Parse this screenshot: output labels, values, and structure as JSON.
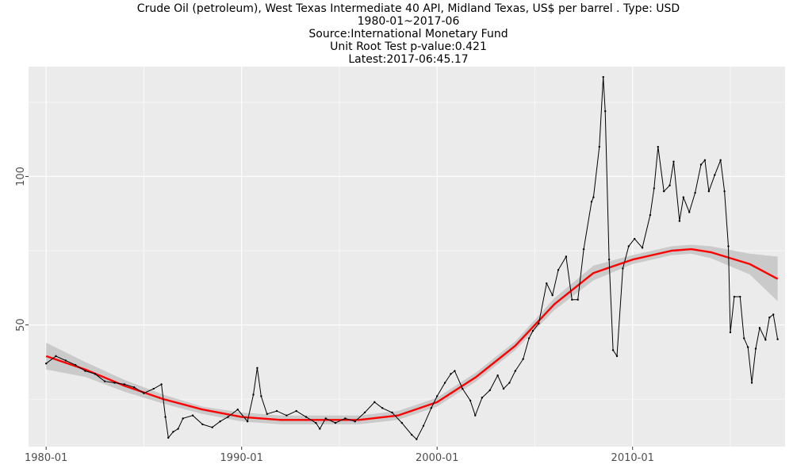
{
  "title_lines": [
    "Crude Oil (petroleum), West Texas Intermediate 40 API, Midland Texas, US$ per barrel . Type: USD",
    "1980-01~2017-06",
    "Source:International Monetary Fund",
    "Unit Root Test p-value:0.421",
    "Latest:2017-06:45.17"
  ],
  "chart_data": {
    "type": "line",
    "title": "Crude Oil (petroleum), West Texas Intermediate 40 API, Midland Texas, US$ per barrel . Type: USD",
    "subtitle": [
      "1980-01~2017-06",
      "Source:International Monetary Fund",
      "Unit Root Test p-value:0.421",
      "Latest:2017-06:45.17"
    ],
    "xlabel": "",
    "ylabel": "",
    "xlim": [
      1979.1,
      2017.8
    ],
    "ylim": [
      9,
      137
    ],
    "x_ticks": [
      {
        "value": 1980.0,
        "label": "1980-01"
      },
      {
        "value": 1990.0,
        "label": "1990-01"
      },
      {
        "value": 2000.0,
        "label": "2000-01"
      },
      {
        "value": 2010.0,
        "label": "2010-01"
      }
    ],
    "y_ticks": [
      {
        "value": 50,
        "label": "50"
      },
      {
        "value": 100,
        "label": "100"
      }
    ],
    "grid": true,
    "legend": "none",
    "colors": {
      "panel": "#ebebeb",
      "grid": "#ffffff",
      "series": "#000000",
      "trend": "#ff0000",
      "band": "#c4c4c4"
    },
    "series": [
      {
        "x": [
          1980.0,
          1980.5,
          1981.0,
          1981.5,
          1982.0,
          1982.5,
          1983.0,
          1983.5,
          1984.0,
          1984.5,
          1985.0,
          1985.5,
          1985.9,
          1986.1,
          1986.25,
          1986.5,
          1986.75,
          1987.0,
          1987.5,
          1988.0,
          1988.5,
          1988.9,
          1989.3,
          1989.8,
          1990.3,
          1990.6,
          1990.8,
          1991.0,
          1991.3,
          1991.8,
          1992.3,
          1992.8,
          1993.3,
          1993.8,
          1994.0,
          1994.3,
          1994.8,
          1995.3,
          1995.8,
          1996.3,
          1996.8,
          1997.2,
          1997.7,
          1998.2,
          1998.7,
          1998.95,
          1999.3,
          1999.7,
          2000.0,
          2000.4,
          2000.7,
          2000.9,
          2001.3,
          2001.7,
          2001.95,
          2002.3,
          2002.7,
          2003.1,
          2003.4,
          2003.7,
          2004.0,
          2004.4,
          2004.7,
          2004.9,
          2005.2,
          2005.6,
          2005.9,
          2006.2,
          2006.6,
          2006.9,
          2007.2,
          2007.5,
          2007.9,
          2008.0,
          2008.3,
          2008.5,
          2008.6,
          2008.8,
          2009.0,
          2009.2,
          2009.5,
          2009.8,
          2010.1,
          2010.5,
          2010.9,
          2011.1,
          2011.3,
          2011.6,
          2011.9,
          2012.1,
          2012.4,
          2012.6,
          2012.9,
          2013.2,
          2013.5,
          2013.7,
          2013.9,
          2014.2,
          2014.5,
          2014.7,
          2014.9,
          2015.0,
          2015.2,
          2015.5,
          2015.7,
          2015.9,
          2016.1,
          2016.3,
          2016.5,
          2016.8,
          2017.0,
          2017.2,
          2017.42
        ],
        "values": [
          37.0,
          39.5,
          38.0,
          36.5,
          34.5,
          33.5,
          31.0,
          30.5,
          30.0,
          29.0,
          27.0,
          28.5,
          30.0,
          19.0,
          12.0,
          14.0,
          15.0,
          18.5,
          19.5,
          16.5,
          15.5,
          17.5,
          19.0,
          21.5,
          17.5,
          26.5,
          35.5,
          26.0,
          20.0,
          21.0,
          19.5,
          21.0,
          19.0,
          17.0,
          15.0,
          18.5,
          17.0,
          18.5,
          17.5,
          20.5,
          24.0,
          22.0,
          20.5,
          17.0,
          13.0,
          11.5,
          16.0,
          22.0,
          26.0,
          30.5,
          33.5,
          34.5,
          28.5,
          24.5,
          19.5,
          25.5,
          28.0,
          33.0,
          28.5,
          30.5,
          34.5,
          38.5,
          45.5,
          48.0,
          50.5,
          64.0,
          60.0,
          68.5,
          73.0,
          58.5,
          58.5,
          75.5,
          91.5,
          93.0,
          110.0,
          133.5,
          122.0,
          72.0,
          41.5,
          39.5,
          69.0,
          76.5,
          79.0,
          76.0,
          87.0,
          96.0,
          110.0,
          95.0,
          97.0,
          105.0,
          85.0,
          93.0,
          88.0,
          94.5,
          104.0,
          105.5,
          95.0,
          100.5,
          105.5,
          95.0,
          76.5,
          47.5,
          59.5,
          59.5,
          45.5,
          42.5,
          30.5,
          42.0,
          49.0,
          45.0,
          52.5,
          53.5,
          45.17
        ]
      },
      {
        "name": "",
        "x": [
          1980.0,
          1982.0,
          1984.0,
          1986.0,
          1988.0,
          1990.0,
          1992.0,
          1994.0,
          1996.0,
          1998.0,
          2000.0,
          2002.0,
          2004.0,
          2006.0,
          2008.0,
          2010.0,
          2012.0,
          2013.0,
          2014.0,
          2016.0,
          2017.42
        ],
        "values": [
          39.5,
          35.0,
          29.5,
          25.0,
          21.5,
          19.0,
          18.0,
          18.0,
          18.0,
          19.5,
          24.0,
          32.5,
          43.0,
          57.0,
          67.5,
          72.0,
          75.0,
          75.5,
          74.5,
          70.5,
          65.5
        ],
        "band_upper": [
          44.0,
          37.5,
          31.5,
          26.5,
          22.5,
          20.5,
          19.5,
          19.5,
          19.5,
          21.0,
          25.5,
          34.0,
          44.5,
          59.0,
          70.0,
          73.5,
          76.5,
          77.0,
          76.5,
          74.0,
          73.0
        ],
        "band_lower": [
          35.0,
          32.5,
          27.5,
          23.5,
          20.0,
          17.5,
          16.5,
          16.5,
          16.5,
          18.0,
          22.5,
          31.0,
          41.5,
          55.0,
          65.0,
          70.5,
          73.5,
          74.0,
          72.5,
          67.0,
          58.0
        ]
      }
    ]
  }
}
